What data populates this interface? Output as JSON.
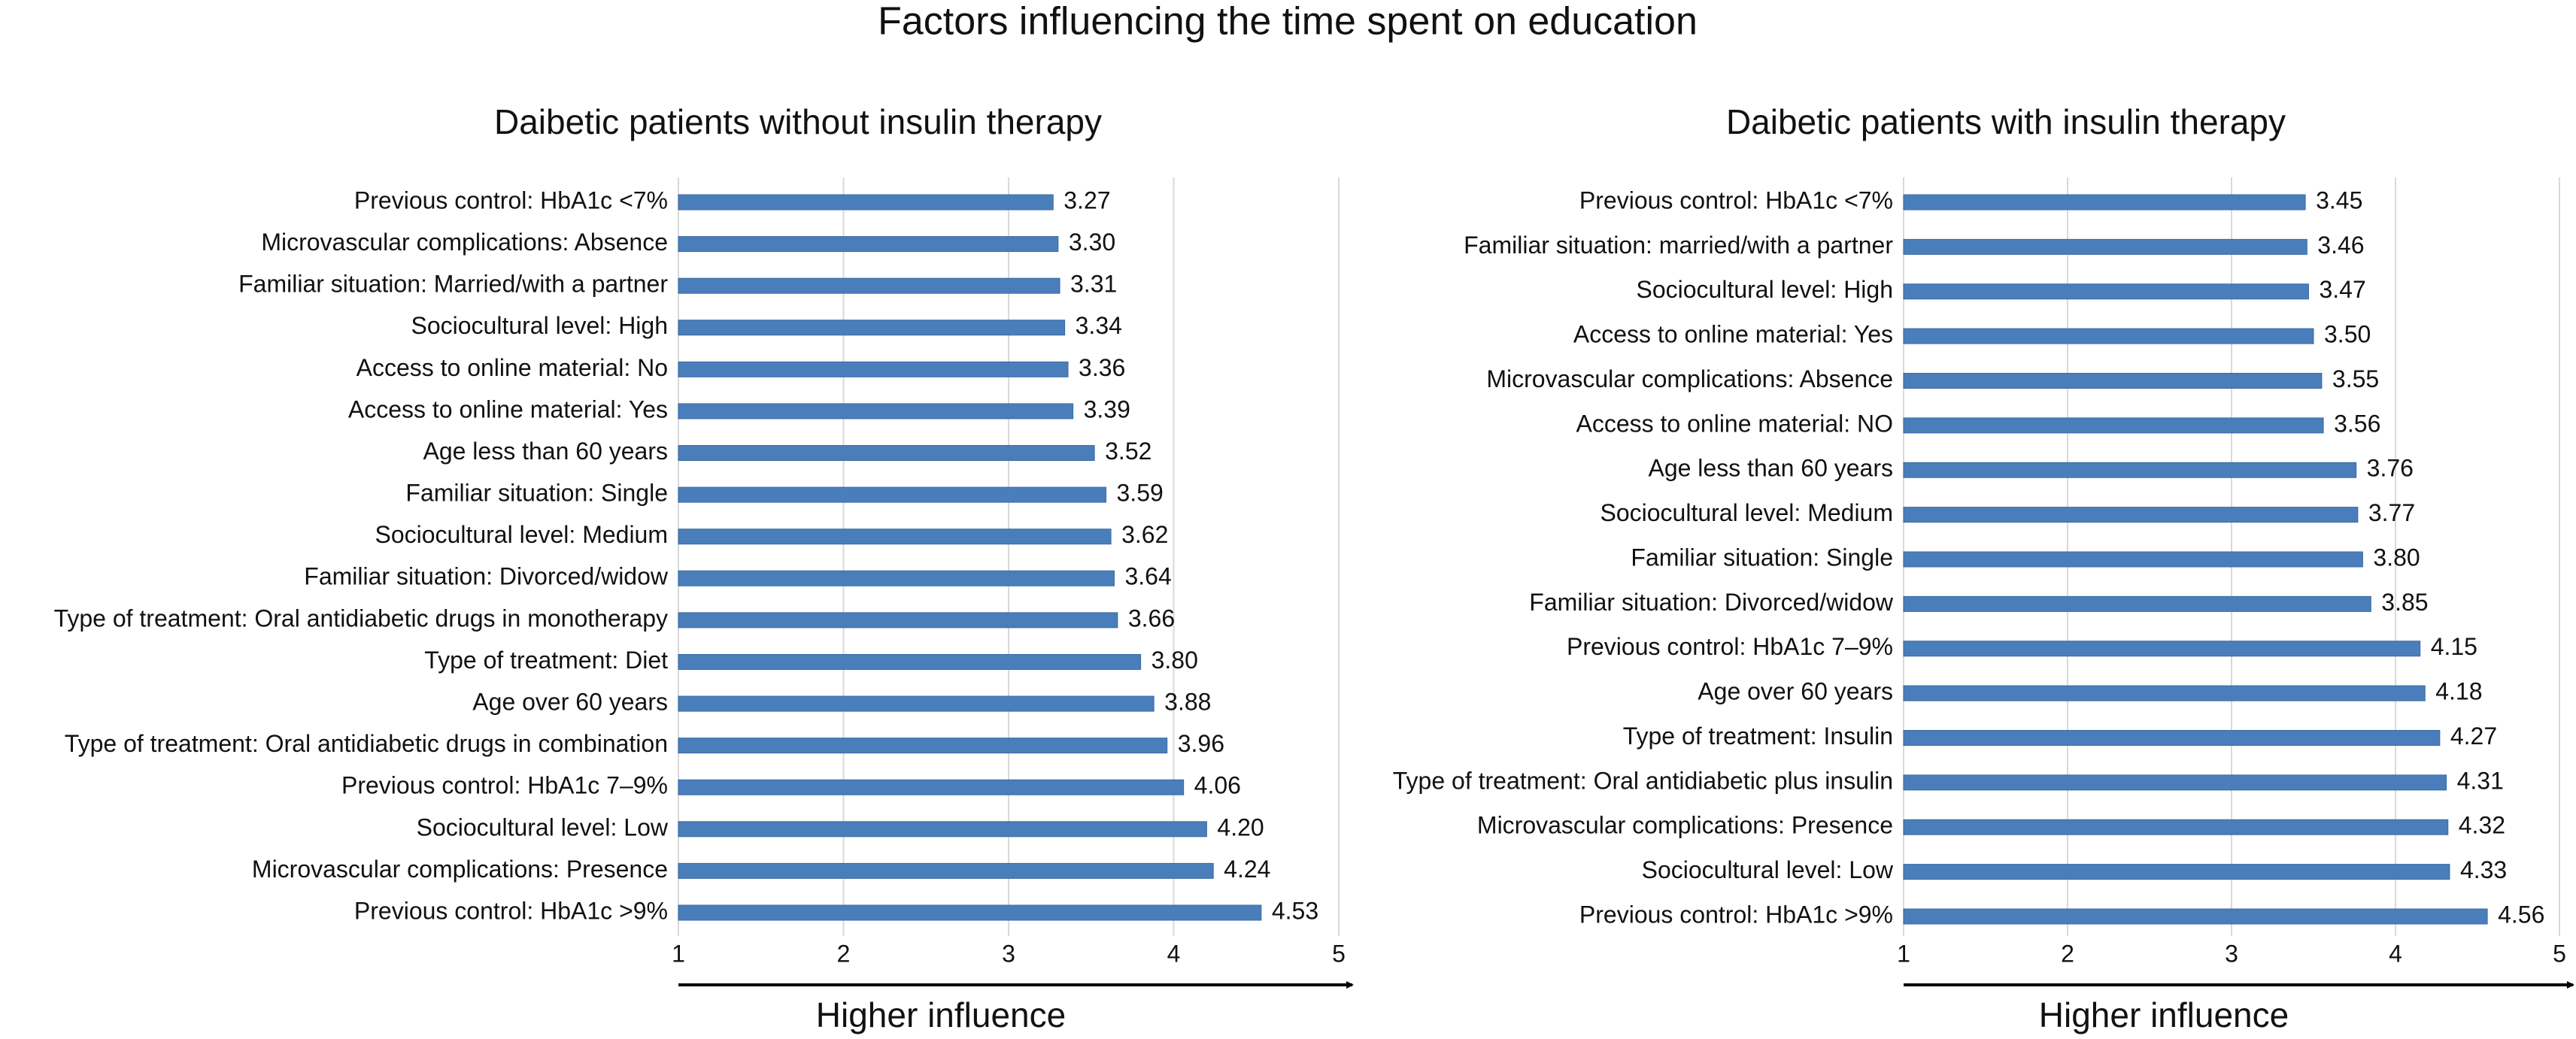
{
  "title": "Factors influencing the time spent on education",
  "chart_data": [
    {
      "type": "bar",
      "orientation": "horizontal",
      "title": "Daibetic patients without insulin therapy",
      "categories": [
        "Previous control: HbA1c <7%",
        "Microvascular complications: Absence",
        "Familiar situation: Married/with a partner",
        "Sociocultural level: High",
        "Access to online material: No",
        "Access to online material: Yes",
        "Age less than 60 years",
        "Familiar situation: Single",
        "Sociocultural level: Medium",
        "Familiar situation: Divorced/widow",
        "Type of treatment: Oral antidiabetic drugs in monotherapy",
        "Type of treatment: Diet",
        "Age over 60 years",
        "Type of treatment: Oral antidiabetic drugs in combination",
        "Previous control: HbA1c 7–9%",
        "Sociocultural level: Low",
        "Microvascular complications: Presence",
        "Previous control: HbA1c >9%"
      ],
      "values": [
        3.27,
        3.3,
        3.31,
        3.34,
        3.36,
        3.39,
        3.52,
        3.59,
        3.62,
        3.64,
        3.66,
        3.8,
        3.88,
        3.96,
        4.06,
        4.2,
        4.24,
        4.53
      ],
      "value_labels": [
        "3.27",
        "3.30",
        "3.31",
        "3.34",
        "3.36",
        "3.39",
        "3.52",
        "3.59",
        "3.62",
        "3.64",
        "3.66",
        "3.80",
        "3.88",
        "3.96",
        "4.06",
        "4.20",
        "4.24",
        "4.53"
      ],
      "color": "#4a7ebb",
      "xlim": [
        1,
        5
      ],
      "xticks": [
        1,
        2,
        3,
        4,
        5
      ],
      "xlabel": "Higher influence",
      "grid": true
    },
    {
      "type": "bar",
      "orientation": "horizontal",
      "title": "Daibetic patients with insulin therapy",
      "categories": [
        "Previous control: HbA1c <7%",
        "Familiar situation: married/with a partner",
        "Sociocultural level: High",
        "Access to online material: Yes",
        "Microvascular complications: Absence",
        "Access to online material: NO",
        "Age less than 60 years",
        "Sociocultural level: Medium",
        "Familiar situation: Single",
        "Familiar situation: Divorced/widow",
        "Previous control: HbA1c 7–9%",
        "Age over 60 years",
        "Type of treatment: Insulin",
        "Type of treatment: Oral antidiabetic plus insulin",
        "Microvascular complications: Presence",
        "Sociocultural level: Low",
        "Previous control: HbA1c >9%"
      ],
      "values": [
        3.45,
        3.46,
        3.47,
        3.5,
        3.55,
        3.56,
        3.76,
        3.77,
        3.8,
        3.85,
        4.15,
        4.18,
        4.27,
        4.31,
        4.32,
        4.33,
        4.56
      ],
      "value_labels": [
        "3.45",
        "3.46",
        "3.47",
        "3.50",
        "3.55",
        "3.56",
        "3.76",
        "3.77",
        "3.80",
        "3.85",
        "4.15",
        "4.18",
        "4.27",
        "4.31",
        "4.32",
        "4.33",
        "4.56"
      ],
      "color": "#4a7ebb",
      "xlim": [
        1,
        5
      ],
      "xticks": [
        1,
        2,
        3,
        4,
        5
      ],
      "xlabel": "Higher influence",
      "grid": true
    }
  ]
}
